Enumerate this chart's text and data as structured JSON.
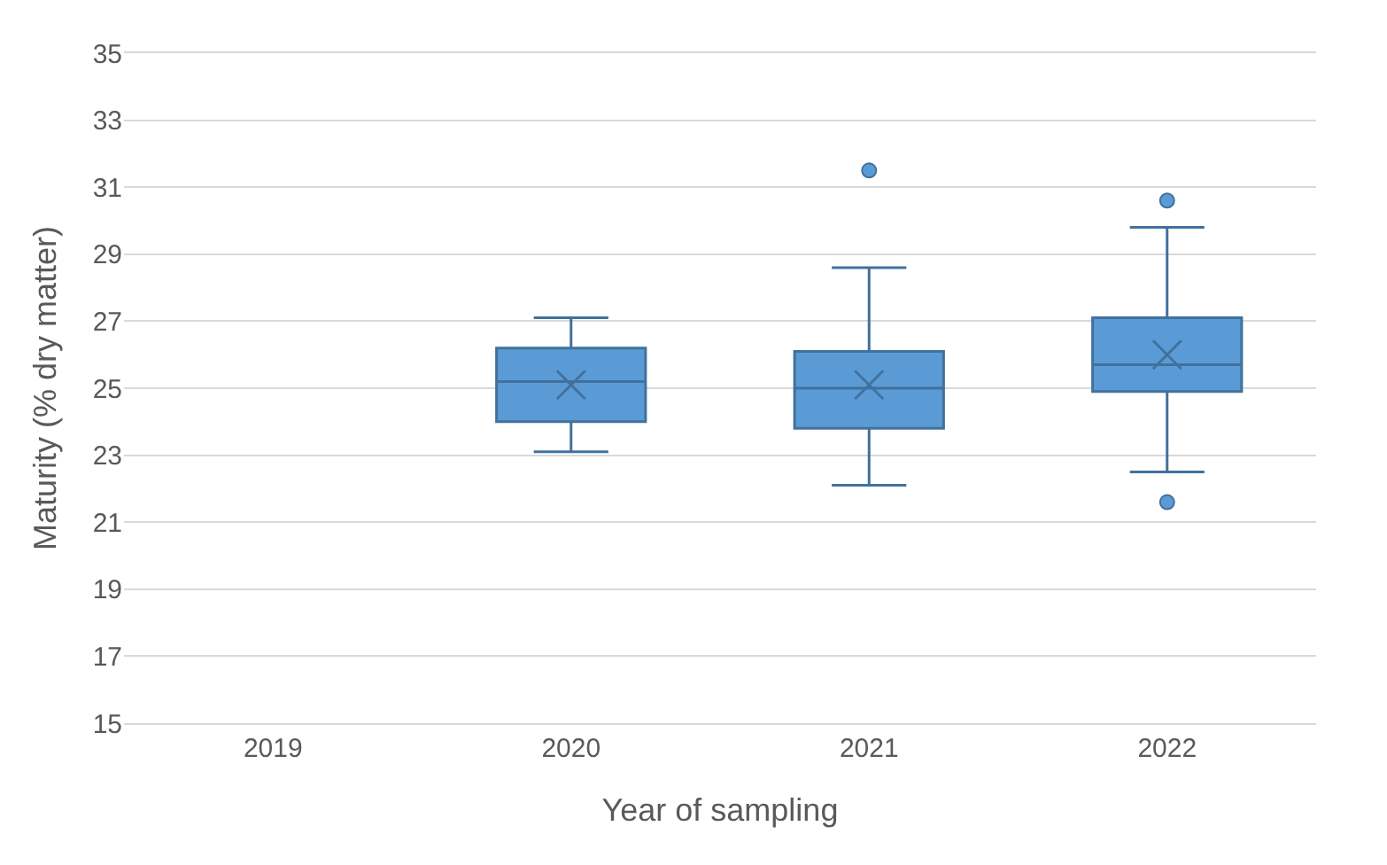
{
  "chart_data": {
    "type": "box",
    "xlabel": "Year of sampling",
    "ylabel": "Maturity (% dry matter)",
    "categories": [
      "2019",
      "2020",
      "2021",
      "2022"
    ],
    "boxes": [
      null,
      {
        "low": 23.1,
        "q1": 24.0,
        "median": 25.2,
        "q3": 26.2,
        "high": 27.1,
        "mean": 25.1
      },
      {
        "low": 22.1,
        "q1": 23.8,
        "median": 25.0,
        "q3": 26.1,
        "high": 28.6,
        "mean": 25.1,
        "outliers": [
          31.5
        ]
      },
      {
        "low": 22.5,
        "q1": 24.9,
        "median": 25.7,
        "q3": 27.1,
        "high": 29.8,
        "mean": 26.0,
        "outliers": [
          30.6,
          21.6
        ]
      }
    ],
    "color": "#5b9bd5",
    "ylim": [
      15,
      35
    ],
    "yticks": [
      15,
      17,
      19,
      21,
      23,
      25,
      27,
      29,
      31,
      33,
      35
    ],
    "grid": "y"
  }
}
